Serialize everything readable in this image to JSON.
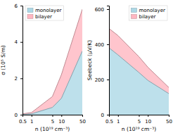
{
  "chart_data": [
    {
      "type": "area",
      "log": "x",
      "grid": false,
      "legend": "upper left",
      "x_label": "n (10¹⁹ cm⁻³)",
      "y_label": "σ (10⁵ S/m)",
      "x": [
        0.5,
        1,
        5,
        10,
        50
      ],
      "series": [
        {
          "name": "monolayer",
          "color": "#add8e6",
          "values": [
            0.02,
            0.05,
            0.4,
            0.9,
            3.5
          ]
        },
        {
          "name": "bilayer",
          "color": "#ffb6c1",
          "values": [
            0.05,
            0.12,
            1.0,
            2.2,
            5.8
          ]
        }
      ],
      "xlim": [
        0.5,
        50
      ],
      "xticks": [
        0.5,
        1,
        5,
        10,
        50
      ],
      "ylim": [
        0,
        6
      ],
      "yticks": [
        0,
        2,
        4,
        6
      ]
    },
    {
      "type": "area",
      "log": "x",
      "grid": false,
      "legend": "upper right",
      "x_label": "n (10¹⁹ cm⁻³)",
      "y_label": "Seebeck (μV/K)",
      "x": [
        0.5,
        1,
        5,
        10,
        50
      ],
      "series": [
        {
          "name": "monolayer",
          "color": "#add8e6",
          "values": [
            380,
            340,
            240,
            195,
            120
          ]
        },
        {
          "name": "bilayer",
          "color": "#ffb6c1",
          "values": [
            490,
            450,
            330,
            270,
            155
          ]
        }
      ],
      "xlim": [
        0.5,
        50
      ],
      "xticks": [
        0.5,
        1,
        5,
        10,
        50
      ],
      "ylim": [
        0,
        620
      ],
      "yticks": [
        0,
        200,
        400,
        600
      ]
    }
  ]
}
